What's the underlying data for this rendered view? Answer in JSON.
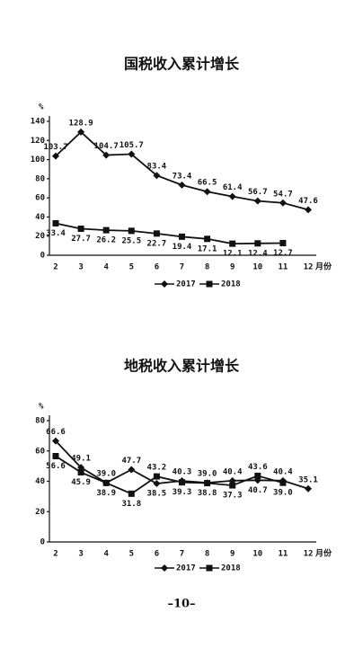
{
  "chart_data": [
    {
      "type": "line",
      "title": "国税收入累计增长",
      "y_label": "%",
      "x_label": "月份",
      "categories": [
        "2",
        "3",
        "4",
        "5",
        "6",
        "7",
        "8",
        "9",
        "10",
        "11",
        "12"
      ],
      "ylim": [
        0,
        140
      ],
      "yticks": [
        0,
        20,
        40,
        60,
        80,
        100,
        120,
        140
      ],
      "grid": false,
      "series": [
        {
          "name": "2017",
          "color": "#111111",
          "marker": "diamond",
          "values": [
            103.7,
            128.9,
            104.7,
            105.7,
            83.4,
            73.4,
            66.5,
            61.4,
            56.7,
            54.7,
            47.6
          ],
          "value_labels": [
            "103.7",
            "128.9",
            "104.7",
            "105.7",
            "83.4",
            "73.4",
            "66.5",
            "61.4",
            "56.7",
            "54.7",
            "47.6"
          ]
        },
        {
          "name": "2018",
          "color": "#111111",
          "marker": "square",
          "values": [
            33.4,
            27.7,
            26.2,
            25.5,
            22.7,
            19.4,
            17.1,
            12.1,
            12.4,
            12.7,
            null
          ],
          "value_labels": [
            "33.4",
            "27.7",
            "26.2",
            "25.5",
            "22.7",
            "19.4",
            "17.1",
            "12.1",
            "12.4",
            "12.7",
            null
          ]
        }
      ]
    },
    {
      "type": "line",
      "title": "地税收入累计增长",
      "y_label": "%",
      "x_label": "月份",
      "categories": [
        "2",
        "3",
        "4",
        "5",
        "6",
        "7",
        "8",
        "9",
        "10",
        "11",
        "12"
      ],
      "ylim": [
        0,
        80
      ],
      "yticks": [
        0,
        20,
        40,
        60,
        80
      ],
      "grid": false,
      "series": [
        {
          "name": "2017",
          "color": "#111111",
          "marker": "diamond",
          "values": [
            66.6,
            49.1,
            39.0,
            47.7,
            38.5,
            40.3,
            39.0,
            40.4,
            40.7,
            40.4,
            35.1
          ],
          "value_labels": [
            "66.6",
            "49.1",
            "39.0",
            "47.7",
            "38.5",
            "40.3",
            "39.0",
            "40.4",
            "40.7",
            "40.4",
            "35.1"
          ]
        },
        {
          "name": "2018",
          "color": "#111111",
          "marker": "square",
          "values": [
            56.6,
            45.9,
            38.9,
            31.8,
            43.2,
            39.3,
            38.8,
            37.3,
            43.6,
            39.0,
            null
          ],
          "value_labels": [
            "56.6",
            "45.9",
            "38.9",
            "31.8",
            "43.2",
            "39.3",
            "38.8",
            "37.3",
            "43.6",
            "39.0",
            null
          ]
        }
      ]
    }
  ],
  "page_number": "–10–"
}
